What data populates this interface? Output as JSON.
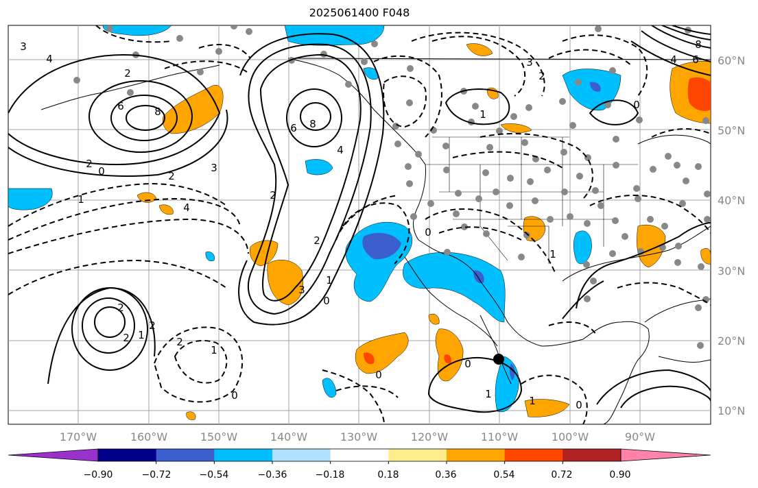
{
  "title": "2025061400 F048",
  "lat_labels": [
    "60°N",
    "50°N",
    "40°N",
    "30°N",
    "20°N",
    "10°N"
  ],
  "lon_labels": [
    "170°W",
    "160°W",
    "150°W",
    "140°W",
    "130°W",
    "120°W",
    "110°W",
    "100°W",
    "90°W"
  ],
  "colorbar": {
    "ticks": [
      "−0.90",
      "−0.72",
      "−0.54",
      "−0.36",
      "−0.18",
      "0.18",
      "0.36",
      "0.54",
      "0.72",
      "0.90"
    ],
    "colors": [
      "#9932cc",
      "#00008b",
      "#3a5fcd",
      "#00bfff",
      "#b0e2ff",
      "#ffffff",
      "#ffec8b",
      "#ffa500",
      "#ff4500",
      "#b22222",
      "#ff82ab"
    ]
  },
  "contour_labels": [
    "3",
    "4",
    "2",
    "6",
    "8",
    "0",
    "2",
    "3",
    "1",
    "2",
    "4",
    "6",
    "8",
    "4",
    "2",
    "1",
    "0",
    "2",
    "3",
    "2",
    "2",
    "1",
    "1",
    "2",
    "0",
    "2",
    "1",
    "0",
    "0",
    "1",
    "3",
    "2",
    "0",
    "1",
    "0",
    "1",
    "0",
    "6",
    "4",
    "8"
  ],
  "colors": {
    "shade_blue": "#00bfff",
    "shade_blue_dark": "#3a5fcd",
    "shade_orange": "#ffa500",
    "shade_red": "#ff4500",
    "station_dot": "#888888",
    "contour": "#000000",
    "grid": "#a0a0a0"
  }
}
